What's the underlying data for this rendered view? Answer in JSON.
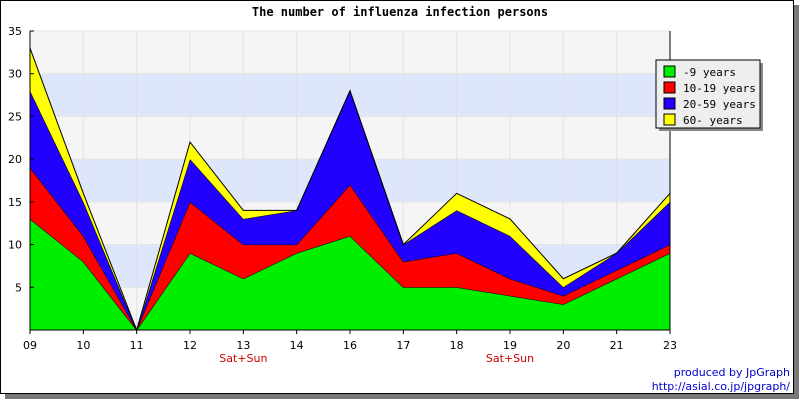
{
  "chart_data": {
    "type": "area",
    "stacked": true,
    "title": "The number of influenza infection persons",
    "xlabel": "",
    "ylabel": "",
    "categories": [
      "09",
      "10",
      "11",
      "12",
      "13",
      "14",
      "16",
      "17",
      "18",
      "19",
      "20",
      "21",
      "23"
    ],
    "weekend_label": "Sat+Sun",
    "weekend_categories": [
      "13",
      "19"
    ],
    "ylim": [
      0,
      35
    ],
    "yticks": [
      5,
      10,
      15,
      20,
      25,
      30,
      35
    ],
    "series": [
      {
        "name": "-9 years",
        "color": "#00ee00",
        "values": [
          13,
          8,
          0,
          9,
          6,
          9,
          11,
          5,
          5,
          4,
          3,
          6,
          9
        ]
      },
      {
        "name": "10-19 years",
        "color": "#ff0000",
        "values": [
          6,
          3,
          0,
          6,
          4,
          1,
          6,
          3,
          4,
          2,
          1,
          1,
          1
        ]
      },
      {
        "name": "20-59 years",
        "color": "#2200ff",
        "values": [
          9,
          4,
          0,
          5,
          3,
          4,
          11,
          2,
          5,
          5,
          1,
          2,
          5
        ]
      },
      {
        "name": "60- years",
        "color": "#ffff00",
        "values": [
          5,
          1,
          0,
          2,
          1,
          0,
          0,
          0,
          2,
          2,
          1,
          0,
          1
        ]
      }
    ],
    "legend": "top-right",
    "grid": true,
    "band_colors": [
      "#f5f5f5",
      "#dde6fb"
    ]
  },
  "footer": {
    "credit_line": "produced by JpGraph",
    "credit_url": "http://asial.co.jp/jpgraph/"
  }
}
